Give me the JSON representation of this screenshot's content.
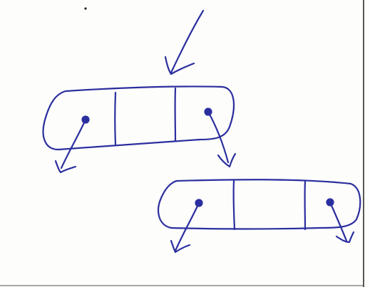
{
  "diagram": {
    "kind": "hand-drawn doubly linked list sketch",
    "nodes": [
      {
        "id": "node-1",
        "fields": [
          "prev-pointer",
          "data",
          "data",
          "next-pointer"
        ]
      },
      {
        "id": "node-2",
        "fields": [
          "prev-pointer",
          "data",
          "data",
          "next-pointer"
        ]
      }
    ],
    "colors": {
      "ink": "#2b2f9e",
      "paper": "#fdfdfc",
      "border": "#222222"
    }
  }
}
